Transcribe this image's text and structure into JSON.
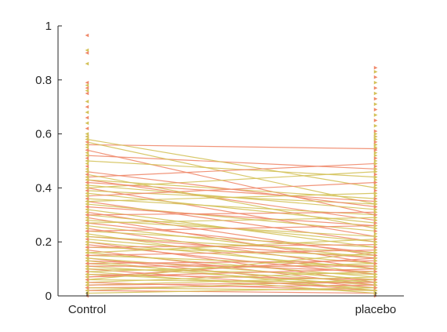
{
  "chart_data": {
    "type": "line",
    "categories": [
      "Control",
      "placebo"
    ],
    "ylim": [
      0,
      1
    ],
    "yticks": [
      0,
      0.2,
      0.4,
      0.6,
      0.8,
      1
    ],
    "ytick_labels": [
      "0",
      "0.2",
      "0.4",
      "0.6",
      "0.8",
      "1"
    ],
    "grid": false,
    "legend": "none",
    "colors": {
      "salmon": "#f08a6c",
      "khaki": "#d4c25a",
      "axis": "#262626"
    },
    "series": [
      {
        "color": "salmon",
        "values": [
          0.56,
          0.545
        ]
      },
      {
        "color": "salmon",
        "values": [
          0.52,
          0.47
        ]
      },
      {
        "color": "khaki",
        "values": [
          0.58,
          0.4
        ]
      },
      {
        "color": "khaki",
        "values": [
          0.57,
          0.34
        ]
      },
      {
        "color": "salmon",
        "values": [
          0.54,
          0.3
        ]
      },
      {
        "color": "khaki",
        "values": [
          0.5,
          0.44
        ]
      },
      {
        "color": "salmon",
        "values": [
          0.44,
          0.49
        ]
      },
      {
        "color": "khaki",
        "values": [
          0.4,
          0.46
        ]
      },
      {
        "color": "salmon",
        "values": [
          0.43,
          0.28
        ]
      },
      {
        "color": "khaki",
        "values": [
          0.43,
          0.36
        ]
      },
      {
        "color": "salmon",
        "values": [
          0.42,
          0.35
        ]
      },
      {
        "color": "khaki",
        "values": [
          0.41,
          0.32
        ]
      },
      {
        "color": "salmon",
        "values": [
          0.4,
          0.22
        ]
      },
      {
        "color": "khaki",
        "values": [
          0.39,
          0.34
        ]
      },
      {
        "color": "khaki",
        "values": [
          0.38,
          0.27
        ]
      },
      {
        "color": "salmon",
        "values": [
          0.37,
          0.42
        ]
      },
      {
        "color": "khaki",
        "values": [
          0.36,
          0.3
        ]
      },
      {
        "color": "salmon",
        "values": [
          0.35,
          0.2
        ]
      },
      {
        "color": "khaki",
        "values": [
          0.34,
          0.24
        ]
      },
      {
        "color": "salmon",
        "values": [
          0.33,
          0.26
        ]
      },
      {
        "color": "khaki",
        "values": [
          0.32,
          0.18
        ]
      },
      {
        "color": "salmon",
        "values": [
          0.31,
          0.15
        ]
      },
      {
        "color": "khaki",
        "values": [
          0.3,
          0.2
        ]
      },
      {
        "color": "salmon",
        "values": [
          0.29,
          0.12
        ]
      },
      {
        "color": "khaki",
        "values": [
          0.28,
          0.22
        ]
      },
      {
        "color": "salmon",
        "values": [
          0.27,
          0.16
        ]
      },
      {
        "color": "khaki",
        "values": [
          0.26,
          0.14
        ]
      },
      {
        "color": "salmon",
        "values": [
          0.25,
          0.1
        ]
      },
      {
        "color": "khaki",
        "values": [
          0.24,
          0.18
        ]
      },
      {
        "color": "khaki",
        "values": [
          0.23,
          0.08
        ]
      },
      {
        "color": "salmon",
        "values": [
          0.22,
          0.14
        ]
      },
      {
        "color": "khaki",
        "values": [
          0.21,
          0.12
        ]
      },
      {
        "color": "salmon",
        "values": [
          0.2,
          0.05
        ]
      },
      {
        "color": "khaki",
        "values": [
          0.2,
          0.1
        ]
      },
      {
        "color": "salmon",
        "values": [
          0.19,
          0.08
        ]
      },
      {
        "color": "khaki",
        "values": [
          0.18,
          0.15
        ]
      },
      {
        "color": "salmon",
        "values": [
          0.17,
          0.04
        ]
      },
      {
        "color": "khaki",
        "values": [
          0.16,
          0.07
        ]
      },
      {
        "color": "khaki",
        "values": [
          0.15,
          0.11
        ]
      },
      {
        "color": "salmon",
        "values": [
          0.14,
          0.03
        ]
      },
      {
        "color": "khaki",
        "values": [
          0.14,
          0.06
        ]
      },
      {
        "color": "salmon",
        "values": [
          0.13,
          0.09
        ]
      },
      {
        "color": "khaki",
        "values": [
          0.12,
          0.05
        ]
      },
      {
        "color": "salmon",
        "values": [
          0.12,
          0.13
        ]
      },
      {
        "color": "khaki",
        "values": [
          0.11,
          0.04
        ]
      },
      {
        "color": "salmon",
        "values": [
          0.1,
          0.02
        ]
      },
      {
        "color": "khaki",
        "values": [
          0.1,
          0.08
        ]
      },
      {
        "color": "khaki",
        "values": [
          0.09,
          0.12
        ]
      },
      {
        "color": "salmon",
        "values": [
          0.08,
          0.06
        ]
      },
      {
        "color": "khaki",
        "values": [
          0.08,
          0.03
        ]
      },
      {
        "color": "salmon",
        "values": [
          0.07,
          0.1
        ]
      },
      {
        "color": "khaki",
        "values": [
          0.06,
          0.05
        ]
      },
      {
        "color": "khaki",
        "values": [
          0.05,
          0.09
        ]
      },
      {
        "color": "salmon",
        "values": [
          0.05,
          0.02
        ]
      },
      {
        "color": "khaki",
        "values": [
          0.04,
          0.07
        ]
      },
      {
        "color": "salmon",
        "values": [
          0.03,
          0.04
        ]
      },
      {
        "color": "khaki",
        "values": [
          0.03,
          0.02
        ]
      },
      {
        "color": "khaki",
        "values": [
          0.02,
          0.06
        ]
      },
      {
        "color": "salmon",
        "values": [
          0.02,
          0.01
        ]
      },
      {
        "color": "khaki",
        "values": [
          0.01,
          0.03
        ]
      },
      {
        "color": "khaki",
        "values": [
          0.45,
          0.25
        ]
      },
      {
        "color": "salmon",
        "values": [
          0.46,
          0.33
        ]
      },
      {
        "color": "khaki",
        "values": [
          0.35,
          0.38
        ]
      },
      {
        "color": "salmon",
        "values": [
          0.3,
          0.31
        ]
      },
      {
        "color": "khaki",
        "values": [
          0.27,
          0.29
        ]
      },
      {
        "color": "salmon",
        "values": [
          0.24,
          0.26
        ]
      },
      {
        "color": "khaki",
        "values": [
          0.22,
          0.16
        ]
      },
      {
        "color": "salmon",
        "values": [
          0.18,
          0.19
        ]
      },
      {
        "color": "khaki",
        "values": [
          0.16,
          0.21
        ]
      },
      {
        "color": "salmon",
        "values": [
          0.15,
          0.17
        ]
      },
      {
        "color": "khaki",
        "values": [
          0.13,
          0.02
        ]
      },
      {
        "color": "salmon",
        "values": [
          0.11,
          0.11
        ]
      },
      {
        "color": "khaki",
        "values": [
          0.09,
          0.01
        ]
      },
      {
        "color": "salmon",
        "values": [
          0.07,
          0.14
        ]
      },
      {
        "color": "khaki",
        "values": [
          0.06,
          0.16
        ]
      },
      {
        "color": "salmon",
        "values": [
          0.04,
          0.05
        ]
      }
    ],
    "extra_points": {
      "Control": [
        0.965,
        0.91,
        0.9,
        0.86,
        0.79,
        0.78,
        0.77,
        0.76,
        0.75,
        0.72,
        0.7,
        0.68,
        0.66,
        0.64,
        0.62,
        0.6,
        0.59
      ],
      "placebo": [
        0.845,
        0.83,
        0.81,
        0.79,
        0.77,
        0.75,
        0.73,
        0.71,
        0.69,
        0.67,
        0.65,
        0.63,
        0.61,
        0.6,
        0.59,
        0.58,
        0.56
      ]
    }
  }
}
